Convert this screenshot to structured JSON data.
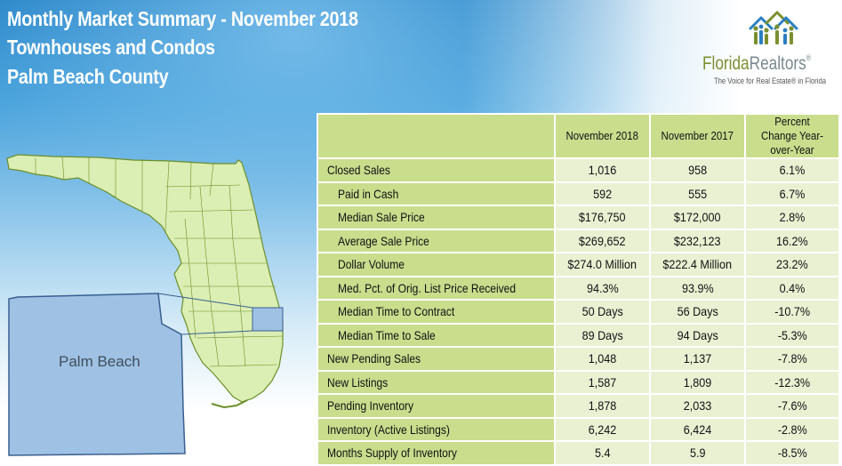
{
  "header": {
    "title_line1": "Monthly Market Summary - November 2018",
    "title_line2": "Townhouses and Condos",
    "title_line3": "Palm Beach County"
  },
  "logo": {
    "brand_part1": "Florida",
    "brand_part2": "Realtors",
    "registered": "®",
    "tagline": "The Voice for Real Estate® in Florida",
    "colors": {
      "green": "#7a9030",
      "gray": "#7a8a8f",
      "blue": "#2a7fc0"
    }
  },
  "map": {
    "highlight_label": "Palm Beach",
    "colors": {
      "state_fill": "#dbeeb3",
      "state_stroke": "#6c8f2a",
      "county_fill": "#9fc1e3",
      "county_stroke": "#3a5f8f"
    }
  },
  "table": {
    "columns": [
      "November 2018",
      "November 2017",
      "Percent Change Year-over-Year"
    ],
    "rows": [
      {
        "label": "Closed Sales",
        "indent": false,
        "nov2018": "1,016",
        "nov2017": "958",
        "change": "6.1%"
      },
      {
        "label": "Paid in Cash",
        "indent": true,
        "nov2018": "592",
        "nov2017": "555",
        "change": "6.7%"
      },
      {
        "label": "Median Sale Price",
        "indent": true,
        "nov2018": "$176,750",
        "nov2017": "$172,000",
        "change": "2.8%"
      },
      {
        "label": "Average Sale Price",
        "indent": true,
        "nov2018": "$269,652",
        "nov2017": "$232,123",
        "change": "16.2%"
      },
      {
        "label": "Dollar Volume",
        "indent": true,
        "nov2018": "$274.0 Million",
        "nov2017": "$222.4 Million",
        "change": "23.2%"
      },
      {
        "label": "Med. Pct. of Orig. List Price Received",
        "indent": true,
        "nov2018": "94.3%",
        "nov2017": "93.9%",
        "change": "0.4%"
      },
      {
        "label": "Median Time to Contract",
        "indent": true,
        "nov2018": "50 Days",
        "nov2017": "56 Days",
        "change": "-10.7%"
      },
      {
        "label": "Median Time to Sale",
        "indent": true,
        "nov2018": "89 Days",
        "nov2017": "94 Days",
        "change": "-5.3%"
      },
      {
        "label": "New Pending Sales",
        "indent": false,
        "nov2018": "1,048",
        "nov2017": "1,137",
        "change": "-7.8%"
      },
      {
        "label": "New Listings",
        "indent": false,
        "nov2018": "1,587",
        "nov2017": "1,809",
        "change": "-12.3%"
      },
      {
        "label": "Pending Inventory",
        "indent": false,
        "nov2018": "1,878",
        "nov2017": "2,033",
        "change": "-7.6%"
      },
      {
        "label": "Inventory (Active Listings)",
        "indent": false,
        "nov2018": "6,242",
        "nov2017": "6,424",
        "change": "-2.8%"
      },
      {
        "label": "Months Supply of Inventory",
        "indent": false,
        "nov2018": "5.4",
        "nov2017": "5.9",
        "change": "-8.5%"
      }
    ],
    "colors": {
      "label_bg": "#c9dd8d",
      "value_bg": "#eaf1d3"
    }
  }
}
